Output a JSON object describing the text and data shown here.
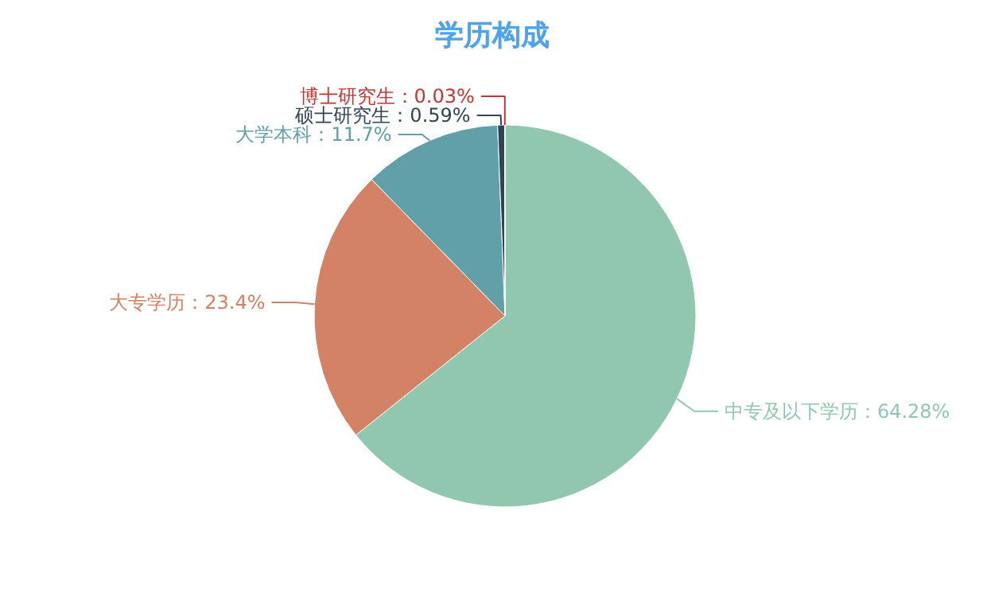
{
  "chart_data": {
    "type": "pie",
    "title": "学历构成",
    "categories": [
      "中专及以下学历",
      "大专学历",
      "大学本科",
      "硕士研究生",
      "博士研究生"
    ],
    "values": [
      64.28,
      23.4,
      11.7,
      0.59,
      0.03
    ],
    "colors": [
      "#91c7ae",
      "#d48265",
      "#61a0a8",
      "#2f4554",
      "#c23531"
    ],
    "value_labels": [
      "64.28%",
      "23.4%",
      "11.7%",
      "0.59%",
      "0.03%"
    ]
  }
}
